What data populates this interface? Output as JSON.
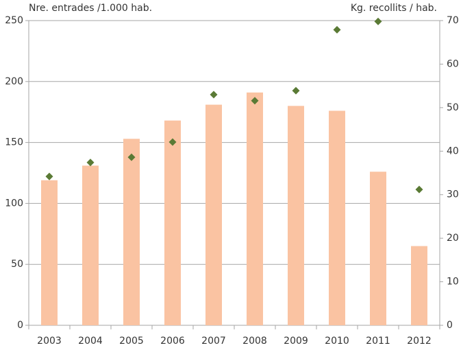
{
  "chart_data": {
    "type": "combo",
    "y_label": "Nre. entrades /1.000 hab.",
    "y2_label": "Kg. recollits / hab.",
    "categories": [
      "2003",
      "2004",
      "2005",
      "2006",
      "2007",
      "2008",
      "2009",
      "2010",
      "2011",
      "2012"
    ],
    "series": [
      {
        "type": "bar",
        "color": "#fac3a2",
        "values": [
          119,
          131,
          153,
          168,
          181,
          191,
          180,
          176,
          126,
          65
        ]
      },
      {
        "type": "scatter",
        "axis": "y2",
        "color": "#5a7a35",
        "values": [
          34.2,
          37.4,
          38.6,
          42.1,
          53,
          51.6,
          53.9,
          67.9,
          69.8,
          31.2
        ]
      }
    ],
    "ylim": [
      0,
      250
    ],
    "yticks": [
      0,
      50,
      100,
      150,
      200,
      250
    ],
    "y2lim": [
      0,
      70
    ],
    "y2ticks": [
      0,
      10,
      20,
      30,
      40,
      50,
      60,
      70
    ],
    "grid": true
  }
}
